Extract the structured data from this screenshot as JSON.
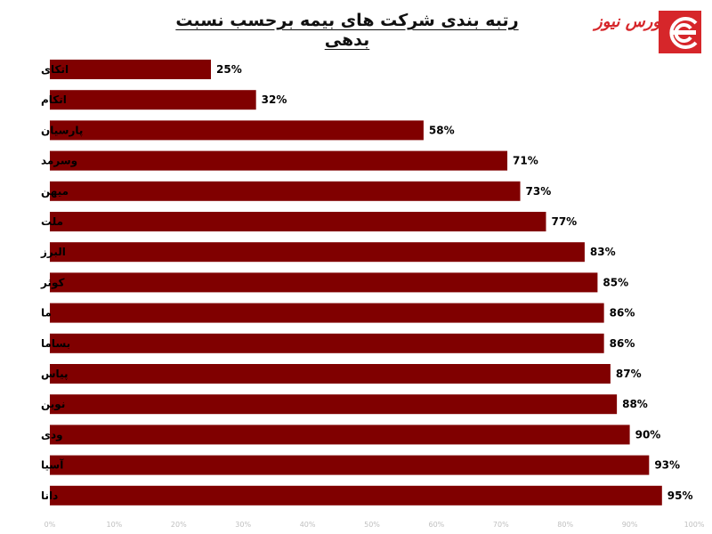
{
  "title": "رتبه بندی شرکت های بیمه برحسب نسبت بدهی",
  "logo": {
    "text": "بورس نیوز",
    "accent": "#d6262a"
  },
  "colors": {
    "bar": "#800000",
    "tick": "#bfbfbf"
  },
  "chart_data": {
    "type": "bar",
    "orientation": "horizontal",
    "title": "رتبه بندی شرکت های بیمه برحسب نسبت بدهی",
    "categories": [
      "اتکای",
      "اتکام",
      "پارسیان",
      "وسرمد",
      "میهن",
      "ملت",
      "البرز",
      "کوثر",
      "ما",
      "بساما",
      "پیاس",
      "نوین",
      "ودی",
      "آسیا",
      "دانا"
    ],
    "values": [
      25,
      32,
      58,
      71,
      73,
      77,
      83,
      85,
      86,
      86,
      87,
      88,
      90,
      93,
      95
    ],
    "value_labels": [
      "25%",
      "32%",
      "58%",
      "71%",
      "73%",
      "77%",
      "83%",
      "85%",
      "86%",
      "86%",
      "87%",
      "88%",
      "90%",
      "93%",
      "95%"
    ],
    "xlim": [
      0,
      100
    ],
    "xticks": [
      0,
      10,
      20,
      30,
      40,
      50,
      60,
      70,
      80,
      90,
      100
    ],
    "xtick_labels": [
      "0%",
      "10%",
      "20%",
      "30%",
      "40%",
      "50%",
      "60%",
      "70%",
      "80%",
      "90%",
      "100%"
    ],
    "grid": false,
    "legend": "none"
  }
}
